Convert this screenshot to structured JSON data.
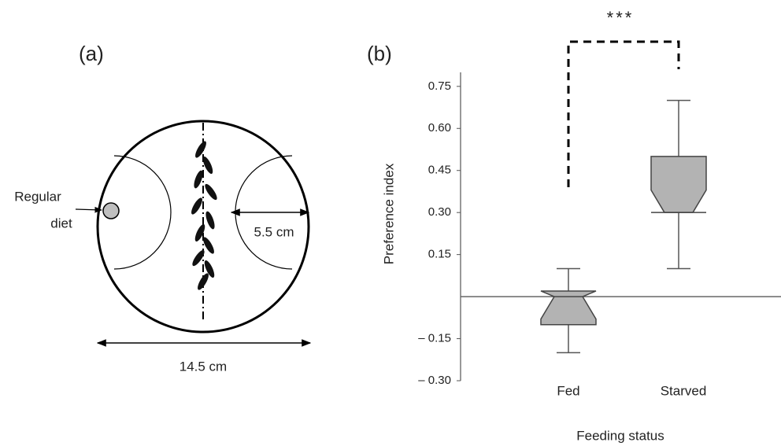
{
  "diagram": {
    "panel_label": "(a)",
    "food_label_line1": "Regular",
    "food_label_line2": "diet",
    "radius_label": "5.5 cm",
    "diameter_label": "14.5 cm"
  },
  "chart_data": {
    "type": "box",
    "panel_label": "(b)",
    "annotation": "***",
    "y_label": "Preference index",
    "x_label": "Feeding status",
    "categories": [
      "Fed",
      "Starved"
    ],
    "boxes": [
      {
        "min": -0.2,
        "q1": -0.1,
        "median": 0,
        "q3": 0.02,
        "max": 0.1
      },
      {
        "min": 0.1,
        "q1": 0.3,
        "median": 0.3,
        "q3": 0.5,
        "max": 0.7
      }
    ],
    "color": "#b3b3b3",
    "ylim": [
      -0.3,
      0.8
    ],
    "yticks": [
      {
        "value": -0.3,
        "label": "– 0.30"
      },
      {
        "value": -0.15,
        "label": "– 0.15"
      },
      0.15,
      {
        "value": 0.3,
        "label": "0.30"
      },
      0.45,
      {
        "value": 0.6,
        "label": "0.60"
      },
      0.75
    ]
  }
}
